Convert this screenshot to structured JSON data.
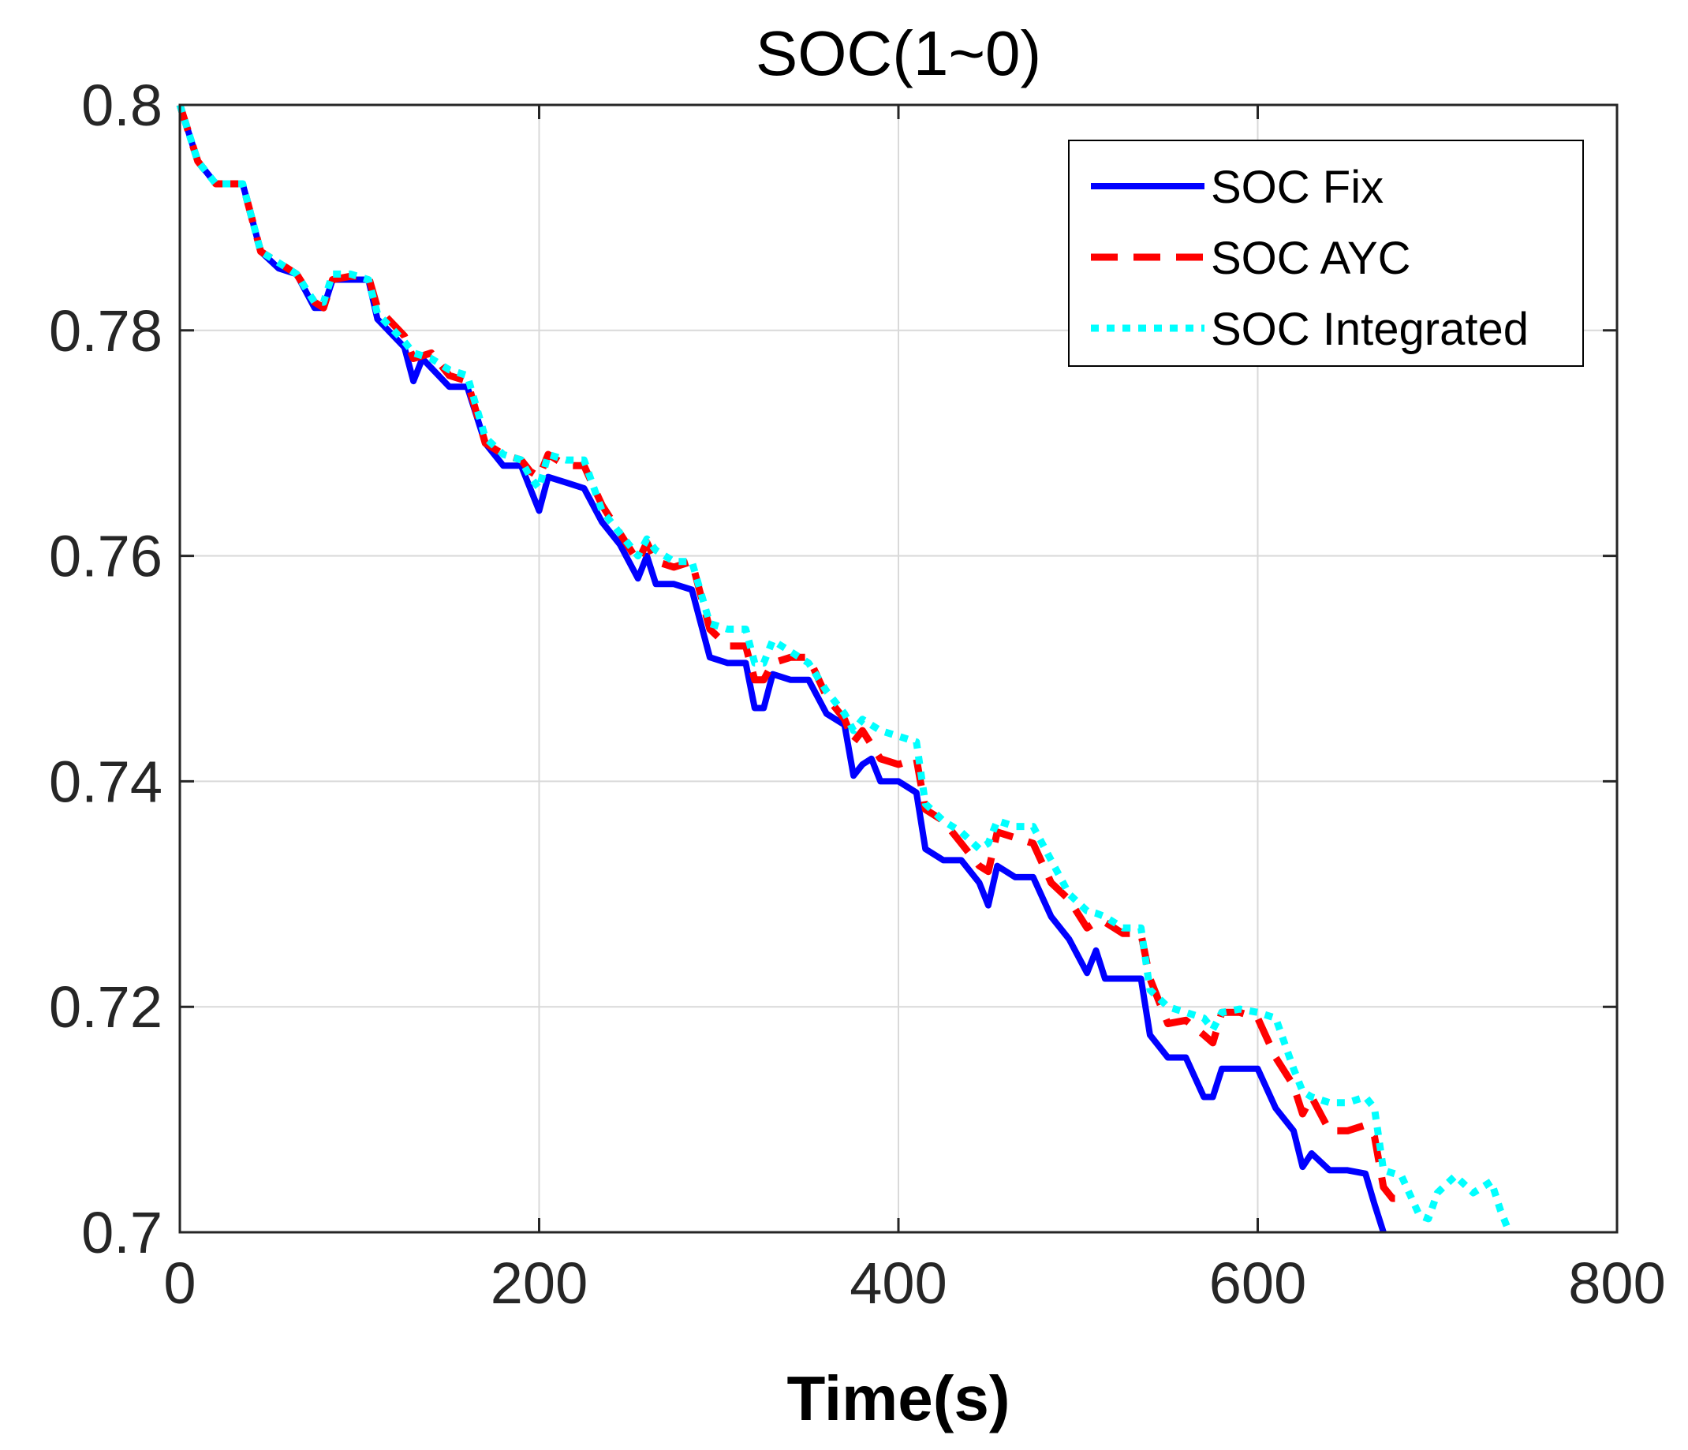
{
  "chart_data": {
    "type": "line",
    "title": "SOC(1~0)",
    "xlabel": "Time(s)",
    "ylabel": "",
    "xlim": [
      0,
      800
    ],
    "ylim": [
      0.7,
      0.8
    ],
    "xticks": [
      0,
      200,
      400,
      600,
      800
    ],
    "yticks": [
      0.7,
      0.72,
      0.74,
      0.76,
      0.78,
      0.8
    ],
    "xtick_labels": [
      "0",
      "200",
      "400",
      "600",
      "800"
    ],
    "ytick_labels": [
      "0.7",
      "0.72",
      "0.74",
      "0.76",
      "0.78",
      "0.8"
    ],
    "grid": true,
    "legend_position": "top-right",
    "series": [
      {
        "name": "SOC Fix",
        "color": "#0000ff",
        "style": "solid",
        "x": [
          0,
          10,
          20,
          35,
          45,
          55,
          65,
          75,
          80,
          85,
          95,
          105,
          110,
          125,
          130,
          135,
          150,
          160,
          170,
          180,
          190,
          195,
          200,
          205,
          215,
          225,
          235,
          245,
          255,
          260,
          265,
          275,
          285,
          295,
          305,
          315,
          320,
          325,
          330,
          340,
          350,
          360,
          370,
          375,
          380,
          385,
          390,
          400,
          410,
          415,
          425,
          435,
          445,
          450,
          455,
          465,
          475,
          485,
          495,
          505,
          510,
          515,
          525,
          535,
          540,
          550,
          560,
          570,
          575,
          580,
          590,
          600,
          610,
          620,
          625,
          630,
          640,
          650,
          660,
          665,
          670
        ],
        "y": [
          0.8,
          0.795,
          0.793,
          0.793,
          0.787,
          0.7855,
          0.785,
          0.782,
          0.782,
          0.7845,
          0.7845,
          0.7845,
          0.781,
          0.7785,
          0.7755,
          0.7775,
          0.775,
          0.775,
          0.77,
          0.768,
          0.768,
          0.766,
          0.764,
          0.767,
          0.7665,
          0.766,
          0.763,
          0.761,
          0.758,
          0.76,
          0.7575,
          0.7575,
          0.757,
          0.751,
          0.7505,
          0.7505,
          0.7465,
          0.7465,
          0.7495,
          0.749,
          0.749,
          0.746,
          0.745,
          0.7405,
          0.7415,
          0.742,
          0.74,
          0.74,
          0.739,
          0.734,
          0.733,
          0.733,
          0.731,
          0.729,
          0.7325,
          0.7315,
          0.7315,
          0.728,
          0.726,
          0.723,
          0.725,
          0.7225,
          0.7225,
          0.7225,
          0.7175,
          0.7155,
          0.7155,
          0.712,
          0.712,
          0.7145,
          0.7145,
          0.7145,
          0.711,
          0.709,
          0.7058,
          0.707,
          0.7055,
          0.7055,
          0.7052,
          0.7025,
          0.7
        ]
      },
      {
        "name": "SOC AYC",
        "color": "#ff0000",
        "style": "dashed",
        "x": [
          0,
          10,
          20,
          35,
          45,
          55,
          65,
          75,
          80,
          85,
          95,
          105,
          110,
          125,
          130,
          140,
          150,
          160,
          170,
          180,
          190,
          195,
          200,
          205,
          215,
          225,
          235,
          245,
          255,
          260,
          265,
          275,
          285,
          295,
          305,
          315,
          320,
          325,
          330,
          340,
          350,
          360,
          370,
          375,
          380,
          390,
          400,
          410,
          415,
          425,
          435,
          445,
          450,
          455,
          465,
          475,
          485,
          495,
          505,
          510,
          515,
          525,
          535,
          540,
          550,
          560,
          570,
          575,
          580,
          590,
          600,
          610,
          620,
          625,
          630,
          640,
          650,
          660,
          665,
          670,
          675,
          680
        ],
        "y": [
          0.8,
          0.795,
          0.793,
          0.793,
          0.787,
          0.786,
          0.785,
          0.7825,
          0.782,
          0.7845,
          0.7848,
          0.7848,
          0.782,
          0.7795,
          0.7775,
          0.778,
          0.776,
          0.7755,
          0.77,
          0.769,
          0.7685,
          0.7675,
          0.767,
          0.769,
          0.768,
          0.768,
          0.7645,
          0.762,
          0.7595,
          0.7612,
          0.7595,
          0.759,
          0.7595,
          0.7535,
          0.752,
          0.752,
          0.749,
          0.749,
          0.7505,
          0.751,
          0.751,
          0.7475,
          0.7455,
          0.7435,
          0.7445,
          0.742,
          0.7415,
          0.742,
          0.7375,
          0.7365,
          0.7345,
          0.7325,
          0.732,
          0.7355,
          0.735,
          0.7345,
          0.731,
          0.7295,
          0.727,
          0.7275,
          0.7275,
          0.7265,
          0.7265,
          0.7225,
          0.7185,
          0.7188,
          0.7175,
          0.7168,
          0.7195,
          0.7195,
          0.719,
          0.7155,
          0.713,
          0.7105,
          0.712,
          0.709,
          0.709,
          0.7095,
          0.7085,
          0.704,
          0.703,
          0.703
        ]
      },
      {
        "name": "SOC Integrated",
        "color": "#00ffff",
        "style": "dotted",
        "x": [
          0,
          10,
          20,
          35,
          45,
          55,
          65,
          75,
          80,
          85,
          95,
          105,
          110,
          125,
          130,
          140,
          150,
          160,
          170,
          180,
          190,
          195,
          200,
          205,
          215,
          225,
          235,
          245,
          255,
          260,
          265,
          275,
          285,
          295,
          305,
          315,
          320,
          325,
          330,
          340,
          350,
          360,
          370,
          375,
          380,
          390,
          400,
          410,
          415,
          425,
          435,
          445,
          450,
          455,
          465,
          475,
          485,
          495,
          505,
          510,
          515,
          525,
          535,
          540,
          550,
          560,
          570,
          575,
          580,
          590,
          600,
          610,
          620,
          625,
          630,
          640,
          650,
          660,
          665,
          670,
          680,
          690,
          695,
          700,
          710,
          720,
          730,
          735,
          740
        ],
        "y": [
          0.8,
          0.795,
          0.793,
          0.793,
          0.787,
          0.786,
          0.785,
          0.7825,
          0.7825,
          0.785,
          0.785,
          0.7845,
          0.7815,
          0.779,
          0.778,
          0.7775,
          0.7765,
          0.776,
          0.7705,
          0.769,
          0.7685,
          0.767,
          0.766,
          0.769,
          0.7685,
          0.7685,
          0.764,
          0.762,
          0.76,
          0.7615,
          0.7605,
          0.7595,
          0.7595,
          0.754,
          0.7535,
          0.7535,
          0.7505,
          0.7505,
          0.7525,
          0.7515,
          0.7505,
          0.748,
          0.746,
          0.7445,
          0.7455,
          0.7445,
          0.744,
          0.7435,
          0.738,
          0.7365,
          0.7355,
          0.734,
          0.7345,
          0.7365,
          0.736,
          0.736,
          0.733,
          0.73,
          0.7285,
          0.7283,
          0.728,
          0.727,
          0.727,
          0.7215,
          0.72,
          0.7195,
          0.719,
          0.718,
          0.7195,
          0.7198,
          0.7195,
          0.719,
          0.7145,
          0.7125,
          0.712,
          0.7115,
          0.7115,
          0.712,
          0.711,
          0.7055,
          0.705,
          0.7015,
          0.7012,
          0.7035,
          0.705,
          0.7035,
          0.7045,
          0.702,
          0.7
        ]
      }
    ]
  }
}
